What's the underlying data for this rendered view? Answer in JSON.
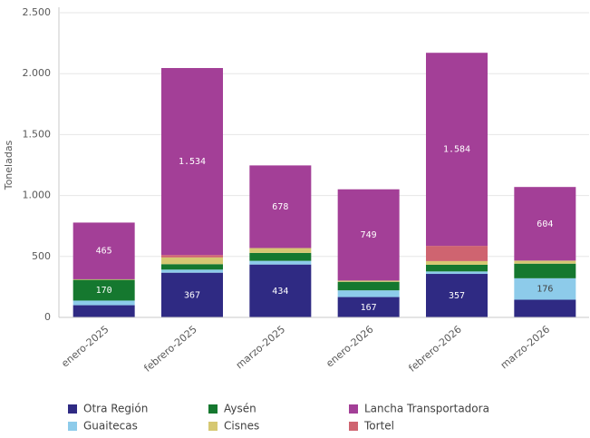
{
  "chart_data": {
    "type": "stacked_bar",
    "y_label": "Toneladas",
    "categories": [
      "enero-2025",
      "febrero-2025",
      "marzo-2025",
      "enero-2026",
      "febrero-2026",
      "marzo-2026"
    ],
    "series": [
      {
        "name": "Otra Región",
        "color": "#2f2a83",
        "values": [
          100,
          367,
          434,
          167,
          357,
          145
        ],
        "value_labels": [
          null,
          "367",
          "434",
          "167",
          "357",
          null
        ]
      },
      {
        "name": "Guaitecas",
        "color": "#8dcbea",
        "values": [
          38,
          25,
          30,
          55,
          20,
          176
        ],
        "value_labels": [
          null,
          null,
          null,
          null,
          null,
          "176"
        ]
      },
      {
        "name": "Aysén",
        "color": "#15782f",
        "values": [
          170,
          45,
          65,
          70,
          55,
          120
        ],
        "value_labels": [
          "170",
          null,
          null,
          null,
          null,
          null
        ]
      },
      {
        "name": "Cisnes",
        "color": "#d6c872",
        "values": [
          5,
          55,
          40,
          10,
          30,
          25
        ]
      },
      {
        "name": "Tortel",
        "color": "#cf6470",
        "values": [
          0,
          20,
          0,
          0,
          125,
          0
        ]
      },
      {
        "name": "Lancha Transportadora",
        "color": "#a33f97",
        "values": [
          465,
          1534,
          678,
          749,
          1584,
          604
        ],
        "value_labels": [
          "465",
          "1.534",
          "678",
          "749",
          "1.584",
          "604"
        ]
      }
    ],
    "ylim": [
      0,
      2500
    ],
    "yticks": [
      0,
      500,
      {
        "value": 1000,
        "label": "1.000"
      },
      {
        "value": 1500,
        "label": "1.500"
      },
      {
        "value": 2000,
        "label": "2.000"
      },
      {
        "value": 2500,
        "label": "2.500"
      }
    ],
    "grid": true
  }
}
